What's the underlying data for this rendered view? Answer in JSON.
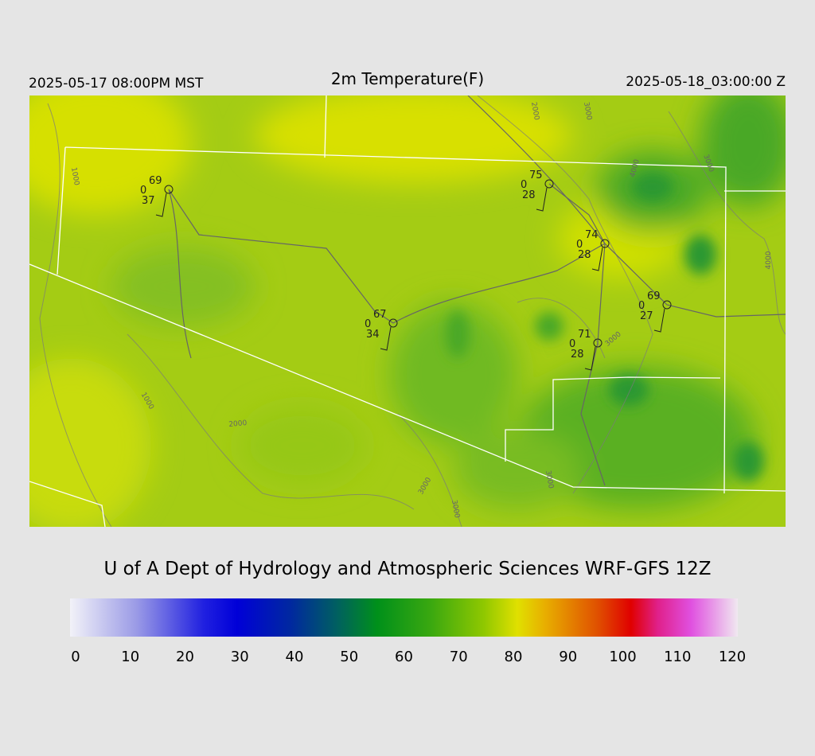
{
  "header": {
    "left": "2025-05-17 08:00PM MST",
    "title": "2m Temperature(F)",
    "right": "2025-05-18_03:00:00 Z"
  },
  "stations": [
    {
      "temp": 69,
      "wind": 0,
      "dewpoint": 37
    },
    {
      "temp": 75,
      "wind": 0,
      "dewpoint": 28
    },
    {
      "temp": 74,
      "wind": 0,
      "dewpoint": 28
    },
    {
      "temp": 67,
      "wind": 0,
      "dewpoint": 34
    },
    {
      "temp": 69,
      "wind": 0,
      "dewpoint": 27
    },
    {
      "temp": 71,
      "wind": 0,
      "dewpoint": 28
    }
  ],
  "contour_labels": [
    1000,
    1000,
    2000,
    2000,
    3000,
    4000,
    3000,
    4000,
    3000,
    3000,
    3000,
    3000
  ],
  "credit": "U of A Dept of Hydrology and Atmospheric Sciences WRF-GFS 12Z",
  "colorbar": {
    "range": [
      0,
      120
    ],
    "ticks": [
      0,
      10,
      20,
      30,
      40,
      50,
      60,
      70,
      80,
      90,
      100,
      110,
      120
    ]
  }
}
